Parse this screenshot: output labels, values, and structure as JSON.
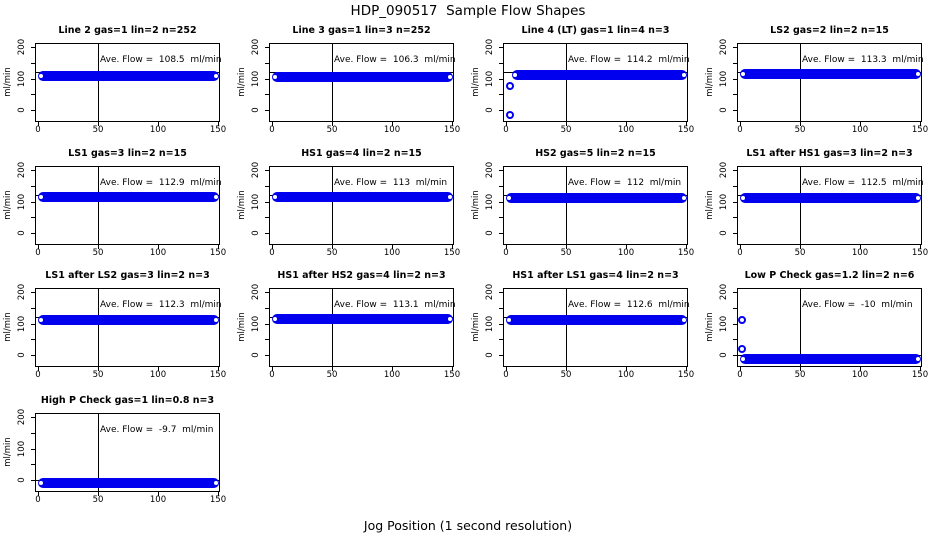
{
  "title": "HDP_090517  Sample Flow Shapes",
  "xlabel": "Jog Position (1 second resolution)",
  "colors": {
    "point_blue": "#0000EE",
    "ref_line": "#000000",
    "background": "#FFFFFF"
  },
  "chart_data": {
    "type": "scatter",
    "layout": {
      "grid_cols": 4,
      "grid_rows": 4,
      "n_panels": 13
    },
    "shared_axes": {
      "ylabel": "ml/min",
      "x_ticks": [
        0,
        50,
        100,
        150
      ],
      "y_ticks_minor": [
        0,
        50,
        100,
        150,
        200
      ],
      "y_ticks_labeled": [
        0,
        100,
        200
      ],
      "xlim": [
        -2.5,
        152
      ],
      "ylim": [
        -38,
        212
      ],
      "vline_x": 50
    },
    "panels": [
      {
        "title": "Line 2 gas=1 lin=2 n=252",
        "ave_label": "Ave. Flow =  108.5  ml/min",
        "ave_flow": 108.5,
        "hline_y": 120,
        "band": {
          "x0": 0,
          "x1": 152,
          "y": 108.5
        },
        "outliers": []
      },
      {
        "title": "Line 3 gas=1 lin=3 n=252",
        "ave_label": "Ave. Flow =  106.3  ml/min",
        "ave_flow": 106.3,
        "hline_y": 120,
        "band": {
          "x0": 0,
          "x1": 152,
          "y": 106.3
        },
        "outliers": []
      },
      {
        "title": "Line 4 (LT) gas=1 lin=4 n=3",
        "ave_label": "Ave. Flow =  114.2  ml/min",
        "ave_flow": 114.2,
        "hline_y": 120,
        "band": {
          "x0": 5,
          "x1": 152,
          "y": 112
        },
        "outliers": [
          {
            "x": 3,
            "y": 75
          },
          {
            "x": 3,
            "y": -15
          }
        ]
      },
      {
        "title": "LS2 gas=2 lin=2 n=15",
        "ave_label": "Ave. Flow =  113.3  ml/min",
        "ave_flow": 113.3,
        "hline_y": 120,
        "band": {
          "x0": 0,
          "x1": 152,
          "y": 113.3
        },
        "outliers": []
      },
      {
        "title": "LS1 gas=3 lin=2 n=15",
        "ave_label": "Ave. Flow =  112.9  ml/min",
        "ave_flow": 112.9,
        "hline_y": 120,
        "band": {
          "x0": 0,
          "x1": 152,
          "y": 112.9
        },
        "outliers": []
      },
      {
        "title": "HS1 gas=4 lin=2 n=15",
        "ave_label": "Ave. Flow =  113  ml/min",
        "ave_flow": 113,
        "hline_y": 120,
        "band": {
          "x0": 0,
          "x1": 152,
          "y": 113
        },
        "outliers": []
      },
      {
        "title": "HS2 gas=5 lin=2 n=15",
        "ave_label": "Ave. Flow =  112  ml/min",
        "ave_flow": 112,
        "hline_y": 120,
        "band": {
          "x0": 0,
          "x1": 152,
          "y": 112
        },
        "outliers": []
      },
      {
        "title": "LS1 after HS1 gas=3 lin=2 n=3",
        "ave_label": "Ave. Flow =  112.5  ml/min",
        "ave_flow": 112.5,
        "hline_y": 120,
        "band": {
          "x0": 0,
          "x1": 152,
          "y": 112.5
        },
        "outliers": []
      },
      {
        "title": "LS1 after LS2 gas=3 lin=2 n=3",
        "ave_label": "Ave. Flow =  112.3  ml/min",
        "ave_flow": 112.3,
        "hline_y": 120,
        "band": {
          "x0": 0,
          "x1": 152,
          "y": 112.3
        },
        "outliers": []
      },
      {
        "title": "HS1 after HS2 gas=4 lin=2 n=3",
        "ave_label": "Ave. Flow =  113.1  ml/min",
        "ave_flow": 113.1,
        "hline_y": 120,
        "band": {
          "x0": 0,
          "x1": 152,
          "y": 113.1
        },
        "outliers": []
      },
      {
        "title": "HS1 after LS1 gas=4 lin=2 n=3",
        "ave_label": "Ave. Flow =  112.6  ml/min",
        "ave_flow": 112.6,
        "hline_y": 120,
        "band": {
          "x0": 0,
          "x1": 152,
          "y": 112.6
        },
        "outliers": []
      },
      {
        "title": "Low P Check gas=1.2 lin=2 n=6",
        "ave_label": "Ave. Flow =  -10  ml/min",
        "ave_flow": -10,
        "hline_y": 0,
        "band": {
          "x0": 0,
          "x1": 152,
          "y": -13
        },
        "outliers": [
          {
            "x": 2,
            "y": 110
          },
          {
            "x": 2,
            "y": 20
          }
        ]
      },
      {
        "title": "High P Check gas=1 lin=0.8 n=3",
        "ave_label": "Ave. Flow =  -9.7  ml/min",
        "ave_flow": -9.7,
        "hline_y": 0,
        "band": {
          "x0": 0,
          "x1": 152,
          "y": -11
        },
        "outliers": []
      }
    ]
  }
}
